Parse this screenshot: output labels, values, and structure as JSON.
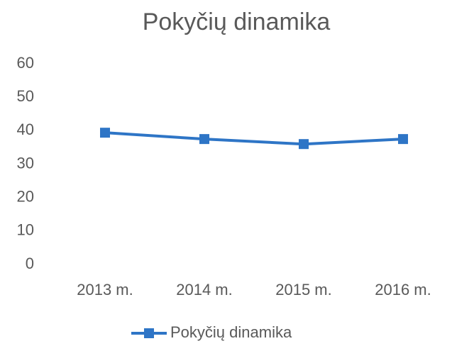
{
  "chart_data": {
    "type": "line",
    "title": "Pokyčių dinamika",
    "categories": [
      "2013 m.",
      "2014 m.",
      "2015 m.",
      "2016 m."
    ],
    "series": [
      {
        "name": "Pokyčių dinamika",
        "color": "#2e75c6",
        "values": [
          39.4,
          37.5,
          36.0,
          37.5
        ]
      }
    ],
    "ylim": [
      0,
      60
    ],
    "yticks": [
      0,
      10,
      20,
      30,
      40,
      50,
      60
    ],
    "grid": false,
    "legend": "bottom"
  }
}
